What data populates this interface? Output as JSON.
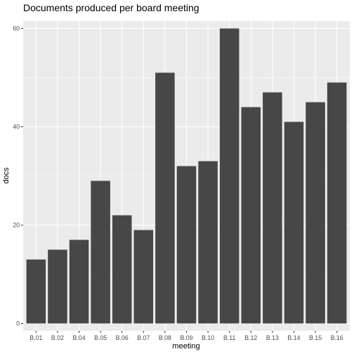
{
  "chart_data": {
    "type": "bar",
    "title": "Documents produced per board meeting",
    "xlabel": "meeting",
    "ylabel": "docs",
    "categories": [
      "B.01",
      "B.02",
      "B.04",
      "B.05",
      "B.06",
      "B.07",
      "B.08",
      "B.09",
      "B.10",
      "B.11",
      "B.12",
      "B.13",
      "B.14",
      "B.15",
      "B.16"
    ],
    "values": [
      13,
      15,
      17,
      29,
      22,
      19,
      51,
      32,
      33,
      60,
      44,
      47,
      41,
      45,
      49
    ],
    "ylim": [
      -1.5,
      61.5
    ],
    "yticks": [
      0,
      20,
      40,
      60
    ],
    "grid": true,
    "legend": "none",
    "colors": {
      "bar": "#474747",
      "panel": "#ebebeb",
      "grid_major": "#ffffff",
      "tick_text": "#4d4d4d",
      "tick_mark": "#333333"
    }
  }
}
